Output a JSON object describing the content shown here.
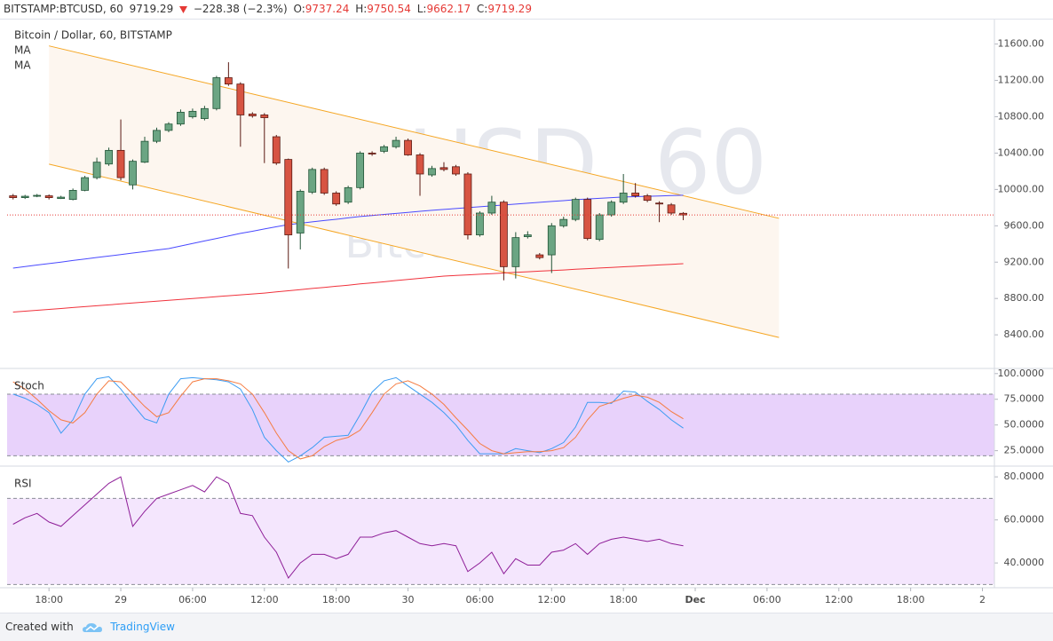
{
  "chart_data": {
    "type": "candlestick",
    "header": {
      "symbol": "BITSTAMP:BTCUSD, 60",
      "change": "−228.38 (−2.3%)",
      "o": "O:",
      "h": "H:",
      "l": "L:",
      "c": "C:"
    },
    "legend_title": "Bitcoin / Dollar, 60, BITSTAMP",
    "watermark": "BTCUSD, 60",
    "watermark_sub": "Bitcoin / Dollar",
    "x": [
      0,
      1,
      2,
      3,
      4,
      5,
      6,
      7,
      8,
      9,
      10,
      11,
      12,
      13,
      14,
      15,
      16,
      17,
      18,
      19,
      20,
      21,
      22,
      23,
      24,
      25,
      26,
      27,
      28,
      29,
      30,
      31,
      32,
      33,
      34,
      35,
      36,
      37,
      38,
      39,
      40,
      41,
      42,
      43,
      44,
      45,
      46,
      47,
      48,
      49,
      50,
      51,
      52,
      53,
      54,
      55,
      56
    ],
    "xlim": [
      -0.5,
      82
    ],
    "xticks": [
      {
        "value": 3,
        "label": "18:00"
      },
      {
        "value": 9,
        "label": "29"
      },
      {
        "value": 15,
        "label": "06:00"
      },
      {
        "value": 21,
        "label": "12:00"
      },
      {
        "value": 27,
        "label": "18:00"
      },
      {
        "value": 33,
        "label": "30"
      },
      {
        "value": 39,
        "label": "06:00"
      },
      {
        "value": 45,
        "label": "12:00"
      },
      {
        "value": 51,
        "label": "18:00"
      },
      {
        "value": 57,
        "label": "Dec"
      },
      {
        "value": 63,
        "label": "06:00"
      },
      {
        "value": 69,
        "label": "12:00"
      },
      {
        "value": 75,
        "label": "18:00"
      },
      {
        "value": 81,
        "label": "2"
      }
    ],
    "ylim": [
      8030,
      11870
    ],
    "yticks": [
      {
        "value": 11600,
        "label": "11600.00"
      },
      {
        "value": 11200,
        "label": "11200.00"
      },
      {
        "value": 10800,
        "label": "10800.00"
      },
      {
        "value": 10400,
        "label": "10400.00"
      },
      {
        "value": 10000,
        "label": "10000.00"
      },
      {
        "value": 9600,
        "label": "9600.00"
      },
      {
        "value": 9200,
        "label": "9200.00"
      },
      {
        "value": 8800,
        "label": "8800.00"
      },
      {
        "value": 8400,
        "label": "8400.00"
      }
    ],
    "grid": false,
    "up_color": "#6ba583",
    "down_color": "#d75442",
    "open": [
      9930,
      9910,
      9925,
      9930,
      9900,
      9890,
      9990,
      10130,
      10280,
      10430,
      10050,
      10300,
      10530,
      10650,
      10720,
      10800,
      10780,
      10890,
      11230,
      11160,
      10830,
      10820,
      10580,
      10330,
      9520,
      9970,
      10220,
      9960,
      9860,
      10020,
      10400,
      10420,
      10470,
      10540,
      10380,
      10160,
      10240,
      10250,
      10170,
      9500,
      9740,
      9860,
      9150,
      9480,
      9280,
      9280,
      9600,
      9670,
      9890,
      9450,
      9720,
      9860,
      9960,
      9930,
      9850,
      9830,
      9737.24
    ],
    "high": [
      9950,
      9940,
      9950,
      9945,
      9930,
      10010,
      10150,
      10350,
      10460,
      10770,
      10330,
      10580,
      10680,
      10740,
      10880,
      10890,
      10920,
      11250,
      11400,
      11180,
      10850,
      10840,
      10600,
      10340,
      10000,
      10240,
      10240,
      9980,
      10040,
      10420,
      10420,
      10490,
      10580,
      10560,
      10400,
      10260,
      10300,
      10270,
      10190,
      9760,
      9930,
      9880,
      9530,
      9540,
      9300,
      9630,
      9700,
      9910,
      9910,
      9740,
      9880,
      10170,
      10070,
      9950,
      9870,
      9850,
      9750.54
    ],
    "low": [
      9890,
      9895,
      9915,
      9890,
      9895,
      9880,
      9980,
      10110,
      10260,
      10100,
      10000,
      10290,
      10510,
      10630,
      10700,
      10780,
      10760,
      10870,
      11140,
      10470,
      10790,
      10290,
      10270,
      9130,
      9340,
      9950,
      9940,
      9820,
      9840,
      10000,
      10370,
      10400,
      10450,
      10370,
      9930,
      10140,
      10200,
      10150,
      9450,
      9480,
      9720,
      9000,
      9020,
      9460,
      9230,
      9080,
      9580,
      9650,
      9440,
      9430,
      9700,
      9840,
      9910,
      9860,
      9640,
      9720,
      9662.17
    ],
    "close": [
      9910,
      9925,
      9935,
      9910,
      9915,
      9990,
      10130,
      10300,
      10430,
      10130,
      10310,
      10530,
      10650,
      10720,
      10850,
      10860,
      10890,
      11230,
      11160,
      10820,
      10810,
      10790,
      10290,
      9500,
      9980,
      10220,
      9960,
      9840,
      10020,
      10400,
      10390,
      10470,
      10540,
      10380,
      10170,
      10230,
      10220,
      10170,
      9500,
      9740,
      9860,
      9150,
      9470,
      9500,
      9250,
      9600,
      9670,
      9890,
      9460,
      9720,
      9860,
      9960,
      9930,
      9880,
      9840,
      9740,
      9719.29
    ],
    "last_color": "#e53935",
    "series": [
      {
        "name": "MA",
        "color": "#4a4aff",
        "values": [
          9134,
          9151,
          9168,
          9184,
          9201,
          9218,
          9234,
          9251,
          9267,
          9284,
          9300,
          9316,
          9333,
          9349,
          9377,
          9405,
          9433,
          9460,
          9488,
          9516,
          9540,
          9565,
          9589,
          9613,
          9628,
          9643,
          9658,
          9672,
          9687,
          9702,
          9713,
          9725,
          9736,
          9747,
          9759,
          9770,
          9780,
          9790,
          9800,
          9809,
          9819,
          9829,
          9839,
          9848,
          9858,
          9868,
          9877,
          9887,
          9895,
          9902,
          9910,
          9917,
          9921,
          9925,
          9928,
          9932,
          9936
        ]
      },
      {
        "name": "MA",
        "color": "#f0323c",
        "values": [
          8650,
          8660,
          8670,
          8680,
          8690,
          8700,
          8710,
          8720,
          8730,
          8740,
          8750,
          8760,
          8770,
          8780,
          8790,
          8800,
          8810,
          8820,
          8830,
          8840,
          8850,
          8860,
          8872,
          8885,
          8897,
          8910,
          8922,
          8935,
          8947,
          8960,
          8972,
          8984,
          8997,
          9009,
          9022,
          9034,
          9046,
          9053,
          9060,
          9067,
          9073,
          9080,
          9087,
          9094,
          9101,
          9108,
          9114,
          9121,
          9128,
          9135,
          9142,
          9149,
          9155,
          9162,
          9169,
          9176,
          9183
        ]
      }
    ],
    "channel": {
      "color": "#f5a623",
      "fill": "#fdf6ef",
      "upper": {
        "x": [
          3,
          64
        ],
        "y": [
          11580,
          9682
        ]
      },
      "lower": {
        "x": [
          3,
          64
        ],
        "y": [
          10279,
          8371
        ]
      }
    },
    "indicators": [
      {
        "title": "Stoch",
        "ylim": [
          10,
          105
        ],
        "yticks": [
          {
            "value": 100,
            "label": "100.0000"
          },
          {
            "value": 75,
            "label": "75.0000"
          },
          {
            "value": 50,
            "label": "50.0000"
          },
          {
            "value": 25,
            "label": "25.0000"
          }
        ],
        "bands": [
          20,
          80
        ],
        "band_color": "#e8d2fb",
        "series": [
          {
            "color": "#3c9cf2",
            "values": [
              80,
              76,
              70,
              62,
              42,
              55,
              80,
              95,
              97,
              85,
              70,
              56,
              52,
              80,
              95,
              96,
              95,
              94,
              92,
              85,
              65,
              38,
              25,
              14,
              20,
              28,
              38,
              39,
              40,
              60,
              82,
              93,
              96,
              88,
              80,
              72,
              62,
              50,
              35,
              22,
              22,
              22,
              27,
              25,
              23,
              27,
              33,
              48,
              72,
              72,
              71,
              83,
              82,
              73,
              65,
              55,
              47
            ]
          },
          {
            "color": "#f57c41",
            "values": [
              92,
              85,
              75,
              64,
              55,
              52,
              62,
              80,
              93,
              92,
              80,
              68,
              58,
              62,
              78,
              92,
              95,
              95,
              93,
              90,
              80,
              62,
              42,
              25,
              17,
              20,
              29,
              35,
              38,
              45,
              62,
              80,
              90,
              93,
              88,
              80,
              70,
              57,
              45,
              32,
              25,
              22,
              23,
              24,
              24,
              25,
              28,
              38,
              55,
              68,
              72,
              76,
              79,
              77,
              72,
              63,
              56
            ]
          }
        ]
      },
      {
        "title": "RSI",
        "ylim": [
          28.5,
          85
        ],
        "yticks": [
          {
            "value": 80,
            "label": "80.0000"
          },
          {
            "value": 60,
            "label": "60.0000"
          },
          {
            "value": 40,
            "label": "40.0000"
          }
        ],
        "bands": [
          30,
          70
        ],
        "band_color": "#f4e6fd",
        "series": [
          {
            "color": "#8e1e98",
            "values": [
              58,
              61,
              63,
              59,
              57,
              62,
              67,
              72,
              77,
              80,
              57,
              64,
              70,
              72,
              74,
              76,
              73,
              80,
              77,
              63,
              62,
              52,
              45,
              33,
              40,
              44,
              44,
              42,
              44,
              52,
              52,
              54,
              55,
              52,
              49,
              48,
              49,
              48,
              36,
              40,
              45,
              35,
              42,
              39,
              39,
              45,
              46,
              49,
              44,
              49,
              51,
              52,
              51,
              50,
              51,
              49,
              48
            ]
          }
        ]
      }
    ],
    "footer": {
      "created": "Created with",
      "brand": "TradingView"
    }
  }
}
